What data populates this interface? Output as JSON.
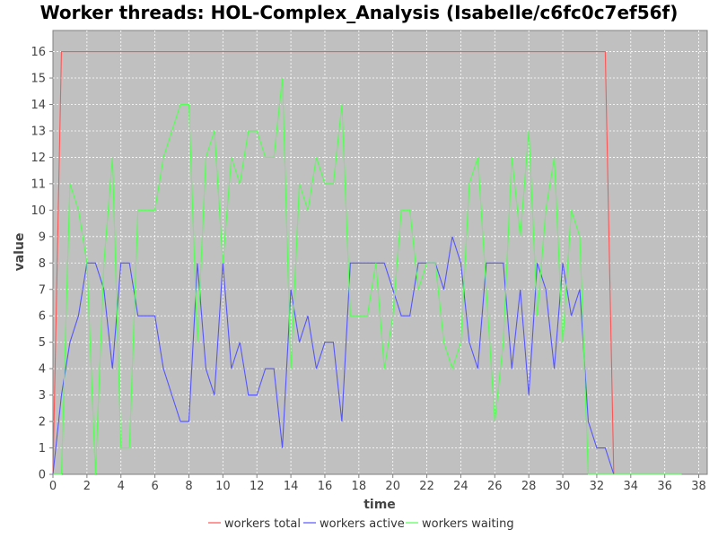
{
  "chart_data": {
    "type": "line",
    "title": "Worker threads: HOL-Complex_Analysis (Isabelle/c6fc0c7ef56f)",
    "xlabel": "time",
    "ylabel": "value",
    "xlim": [
      0,
      38.5
    ],
    "ylim": [
      0,
      16.8
    ],
    "xticks": [
      0,
      2,
      4,
      6,
      8,
      10,
      12,
      14,
      16,
      18,
      20,
      22,
      24,
      26,
      28,
      30,
      32,
      34,
      36,
      38
    ],
    "yticks": [
      0,
      1,
      2,
      3,
      4,
      5,
      6,
      7,
      8,
      9,
      10,
      11,
      12,
      13,
      14,
      15,
      16
    ],
    "grid": true,
    "legend_position": "bottom",
    "plot_background": "#c0c0c0",
    "series": [
      {
        "name": "workers total",
        "color": "#ff5555",
        "x": [
          0,
          0.5,
          32.5,
          33,
          37
        ],
        "y": [
          0,
          16,
          16,
          0,
          0
        ]
      },
      {
        "name": "workers active",
        "color": "#5555ff",
        "x": [
          0,
          0.5,
          1,
          1.5,
          2,
          2.5,
          3,
          3.5,
          4,
          4.5,
          5,
          5.5,
          6,
          6.5,
          7,
          7.5,
          8,
          8.5,
          9,
          9.5,
          10,
          10.5,
          11,
          11.5,
          12,
          12.5,
          13,
          13.5,
          14,
          14.5,
          15,
          15.5,
          16,
          16.5,
          17,
          17.5,
          18,
          18.5,
          19,
          19.5,
          20,
          20.5,
          21,
          21.5,
          22,
          22.5,
          23,
          23.5,
          24,
          24.5,
          25,
          25.5,
          26,
          26.5,
          27,
          27.5,
          28,
          28.5,
          29,
          29.5,
          30,
          30.5,
          31,
          31.5,
          32,
          32.5,
          33,
          37
        ],
        "y": [
          0,
          3,
          5,
          6,
          8,
          8,
          7,
          4,
          8,
          8,
          6,
          6,
          6,
          4,
          3,
          2,
          2,
          8,
          4,
          3,
          8,
          4,
          5,
          3,
          3,
          4,
          4,
          1,
          7,
          5,
          6,
          4,
          5,
          5,
          2,
          8,
          8,
          8,
          8,
          8,
          7,
          6,
          6,
          8,
          8,
          8,
          7,
          9,
          8,
          5,
          4,
          8,
          8,
          8,
          4,
          7,
          3,
          8,
          7,
          4,
          8,
          6,
          7,
          2,
          1,
          1,
          0,
          0
        ]
      },
      {
        "name": "workers waiting",
        "color": "#55ff55",
        "x": [
          0,
          0.5,
          1,
          1.5,
          2,
          2.5,
          3,
          3.5,
          4,
          4.5,
          5,
          5.5,
          6,
          6.5,
          7,
          7.5,
          8,
          8.5,
          9,
          9.5,
          10,
          10.5,
          11,
          11.5,
          12,
          12.5,
          13,
          13.5,
          14,
          14.5,
          15,
          15.5,
          16,
          16.5,
          17,
          17.5,
          18,
          18.5,
          19,
          19.5,
          20,
          20.5,
          21,
          21.5,
          22,
          22.5,
          23,
          23.5,
          24,
          24.5,
          25,
          25.5,
          26,
          26.5,
          27,
          27.5,
          28,
          28.5,
          29,
          29.5,
          30,
          30.5,
          31,
          31.5,
          32,
          32.5,
          33,
          37
        ],
        "y": [
          0,
          0,
          11,
          10,
          8,
          0,
          8,
          12,
          1,
          1,
          10,
          10,
          10,
          12,
          13,
          14,
          14,
          5,
          12,
          13,
          8,
          12,
          11,
          13,
          13,
          12,
          12,
          15,
          4,
          11,
          10,
          12,
          11,
          11,
          14,
          6,
          6,
          6,
          8,
          4,
          6,
          10,
          10,
          7,
          8,
          8,
          5,
          4,
          5,
          11,
          12,
          7,
          2,
          5,
          12,
          9,
          13,
          6,
          10,
          12,
          5,
          10,
          9,
          0,
          0,
          0,
          0,
          0
        ]
      }
    ]
  }
}
